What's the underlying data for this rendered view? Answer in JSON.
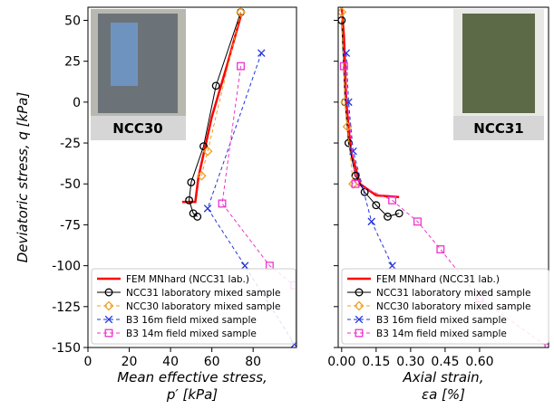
{
  "chart_data": [
    {
      "type": "line",
      "annotation": "NCC30",
      "ylabel": "Deviatoric stress, q [kPa]",
      "xlabel": [
        "Mean effective stress,",
        "p′ [kPa]"
      ],
      "xlim": [
        0,
        101
      ],
      "ylim": [
        -150,
        58
      ],
      "xticks": [
        0,
        20,
        40,
        60,
        80
      ],
      "yticks": [
        50,
        25,
        0,
        -25,
        -50,
        -75,
        -100,
        -125,
        -150
      ],
      "show_ytick_labels": true,
      "legend": "lower left",
      "series": [
        {
          "name": "FEM MNhard (NCC31 lab.)",
          "color": "#ff0000",
          "marker": "none",
          "dashed": false,
          "width": 2.5,
          "x": [
            45.6,
            52,
            53.5,
            60,
            67.7,
            74.3
          ],
          "values": [
            -61,
            -61,
            -46,
            -9,
            24,
            54
          ]
        },
        {
          "name": "NCC31 laboratory mixed sample",
          "color": "#000000",
          "marker": "o",
          "dashed": false,
          "width": 1,
          "x": [
            53,
            51,
            49,
            50,
            56,
            62,
            74
          ],
          "values": [
            -70,
            -68,
            -60,
            -49,
            -27,
            10,
            55
          ]
        },
        {
          "name": "NCC30 laboratory mixed sample",
          "color": "#f0a020",
          "marker": "D",
          "dashed": true,
          "width": 1,
          "x": [
            74,
            58,
            55
          ],
          "values": [
            55,
            -30,
            -45
          ]
        },
        {
          "name": "B3 16m field mixed sample",
          "color": "#2233dd",
          "marker": "x",
          "dashed": true,
          "width": 1,
          "x": [
            84,
            58,
            76,
            100
          ],
          "values": [
            30,
            -65,
            -100,
            -148
          ]
        },
        {
          "name": "B3 14m field mixed sample",
          "color": "#ee33cc",
          "marker": "s",
          "dashed": true,
          "width": 1,
          "x": [
            74,
            65,
            88,
            100
          ],
          "values": [
            22,
            -62,
            -100,
            -112
          ]
        }
      ]
    },
    {
      "type": "line",
      "annotation": "NCC31",
      "xlabel": [
        "Axial strain,",
        "εa [%]"
      ],
      "xlim": [
        -0.015,
        0.9
      ],
      "ylim": [
        -150,
        58
      ],
      "xticks": [
        {
          "value": 0,
          "label": "0.00"
        },
        {
          "value": 0.15,
          "label": "0.15"
        },
        {
          "value": 0.3,
          "label": "0.30"
        },
        {
          "value": 0.45,
          "label": "0.45"
        },
        {
          "value": 0.6,
          "label": "0.60"
        }
      ],
      "yticks": [
        50,
        25,
        0,
        -25,
        -50,
        -75,
        -100,
        -125,
        -150
      ],
      "show_ytick_labels": false,
      "legend": "lower left",
      "series": [
        {
          "name": "FEM MNhard (NCC31 lab.)",
          "color": "#ff0000",
          "marker": "none",
          "dashed": false,
          "width": 2.5,
          "x": [
            0.0,
            0.01,
            0.02,
            0.04,
            0.08,
            0.15,
            0.25
          ],
          "values": [
            58,
            40,
            0,
            -30,
            -50,
            -57,
            -58
          ]
        },
        {
          "name": "NCC31 laboratory mixed sample",
          "color": "#000000",
          "marker": "o",
          "dashed": false,
          "width": 1,
          "x": [
            0.0,
            0.015,
            0.03,
            0.06,
            0.1,
            0.15,
            0.2,
            0.25
          ],
          "values": [
            50,
            0,
            -25,
            -45,
            -55,
            -63,
            -70,
            -68
          ]
        },
        {
          "name": "NCC30 laboratory mixed sample",
          "color": "#f0a020",
          "marker": "D",
          "dashed": true,
          "width": 1,
          "x": [
            0.0,
            0.015,
            0.025,
            0.05
          ],
          "values": [
            55,
            0,
            -15,
            -50
          ]
        },
        {
          "name": "B3 16m field mixed sample",
          "color": "#2233dd",
          "marker": "x",
          "dashed": true,
          "width": 1,
          "x": [
            0.02,
            0.03,
            0.05,
            0.13,
            0.22
          ],
          "values": [
            30,
            0,
            -30,
            -73,
            -100
          ]
        },
        {
          "name": "B3 14m field mixed sample",
          "color": "#ee33cc",
          "marker": "s",
          "dashed": true,
          "width": 1,
          "x": [
            0.01,
            0.06,
            0.22,
            0.33,
            0.43,
            0.6,
            0.9
          ],
          "values": [
            22,
            -50,
            -60,
            -73,
            -90,
            -120,
            -150
          ]
        }
      ]
    }
  ]
}
